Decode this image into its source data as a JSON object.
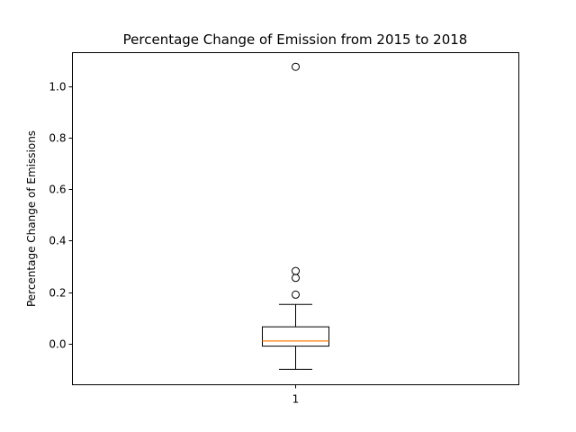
{
  "chart_data": {
    "type": "box",
    "title": "Percentage Change of Emission from 2015 to 2018",
    "xlabel": "",
    "ylabel": "Percentage Change of Emissions",
    "categories": [
      "1"
    ],
    "ylim": [
      -0.16,
      1.13
    ],
    "yticks": [
      0.0,
      0.2,
      0.4,
      0.6,
      0.8,
      1.0
    ],
    "ytick_labels": [
      "0.0",
      "0.2",
      "0.4",
      "0.6",
      "0.8",
      "1.0"
    ],
    "grid": false,
    "box": {
      "whisker_low": -0.1,
      "q1": -0.01,
      "median": 0.01,
      "q3": 0.065,
      "whisker_high": 0.152,
      "outliers": [
        0.19,
        0.255,
        0.282,
        1.075
      ]
    },
    "colors": {
      "box": "#000000",
      "median": "#ff7f0e",
      "background": "#ffffff"
    }
  }
}
